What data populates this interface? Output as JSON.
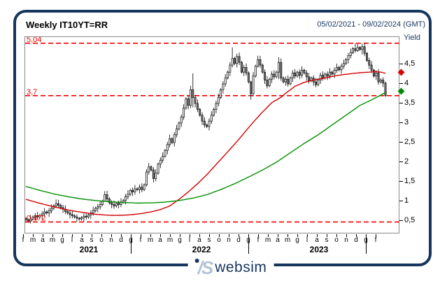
{
  "header": {
    "title": "Weekly IT10YT=RR",
    "date_range": "05/02/2021 - 09/02/2024 (GMT)"
  },
  "footer": {
    "logo_mark": "/S",
    "logo_text": "websim"
  },
  "chart_data": {
    "type": "candlestick",
    "title": "Weekly IT10YT=RR",
    "period": "05/02/2021 - 09/02/2024 (GMT)",
    "ylabel": "Yield",
    "ylim": [
      0.16,
      5.2
    ],
    "grid": false,
    "y_ticks": [
      {
        "value": 4.5,
        "label": "4,5"
      },
      {
        "value": 4.0,
        "label": "4"
      },
      {
        "value": 3.5,
        "label": "3,5"
      },
      {
        "value": 3.0,
        "label": "3"
      },
      {
        "value": 2.5,
        "label": "2,5"
      },
      {
        "value": 2.0,
        "label": "2"
      },
      {
        "value": 1.5,
        "label": "1,5"
      },
      {
        "value": 1.0,
        "label": "1"
      },
      {
        "value": 0.5,
        "label": "0,5"
      }
    ],
    "levels": [
      {
        "value": 5.04,
        "label": "5,04",
        "meaning": "highest high"
      },
      {
        "value": 3.7,
        "label": "3,7",
        "meaning": "last price"
      },
      {
        "value": 0.472,
        "label": "0,472",
        "meaning": "lowest low"
      }
    ],
    "months": [
      "f",
      "m",
      "a",
      "m",
      "g",
      "l",
      "a",
      "s",
      "o",
      "n",
      "d",
      "g",
      "f",
      "m",
      "a",
      "m",
      "g",
      "l",
      "a",
      "s",
      "o",
      "n",
      "d",
      "g",
      "f",
      "m",
      "a",
      "m",
      "g",
      "l",
      "a",
      "s",
      "o",
      "n",
      "d",
      "g",
      "f"
    ],
    "year_dividers": [
      11,
      23,
      35
    ],
    "years": [
      {
        "label": "2021",
        "from": 0,
        "to": 10
      },
      {
        "label": "2022",
        "from": 11,
        "to": 22
      },
      {
        "label": "2023",
        "from": 23,
        "to": 34
      }
    ],
    "candles": {
      "first_open": 0.56,
      "closes": [
        0.53,
        0.5,
        0.55,
        0.6,
        0.63,
        0.6,
        0.64,
        0.68,
        0.73,
        0.7,
        0.76,
        0.82,
        0.88,
        0.94,
        0.9,
        0.84,
        0.8,
        0.74,
        0.7,
        0.66,
        0.63,
        0.6,
        0.57,
        0.55,
        0.58,
        0.62,
        0.6,
        0.65,
        0.7,
        0.76,
        0.82,
        0.86,
        0.92,
        1.0,
        1.17,
        1.06,
        0.96,
        0.92,
        0.88,
        0.95,
        0.92,
        0.98,
        1.02,
        1.12,
        1.18,
        1.28,
        1.24,
        1.32,
        1.3,
        1.36,
        1.3,
        1.42,
        1.75,
        1.88,
        1.8,
        1.58,
        1.72,
        1.95,
        2.05,
        2.15,
        2.3,
        2.45,
        2.6,
        2.5,
        2.7,
        2.85,
        3.0,
        3.15,
        3.38,
        3.62,
        3.45,
        3.85,
        3.65,
        3.5,
        3.35,
        3.2,
        3.05,
        2.95,
        2.91,
        3.05,
        3.2,
        3.35,
        3.5,
        3.65,
        3.85,
        4.0,
        4.15,
        4.3,
        4.48,
        4.65,
        4.52,
        4.7,
        4.55,
        4.3,
        4.42,
        4.28,
        4.05,
        3.75,
        4.2,
        4.45,
        4.62,
        4.48,
        4.3,
        4.1,
        3.95,
        4.12,
        4.25,
        4.18,
        4.3,
        4.55,
        4.15,
        4.05,
        4.12,
        4.0,
        4.15,
        4.28,
        4.2,
        4.3,
        4.22,
        4.35,
        4.28,
        4.18,
        4.08,
        4.15,
        4.05,
        3.98,
        4.1,
        4.22,
        4.15,
        4.25,
        4.2,
        4.3,
        4.25,
        4.35,
        4.42,
        4.36,
        4.45,
        4.52,
        4.62,
        4.72,
        4.8,
        4.9,
        4.85,
        4.93,
        4.88,
        4.95,
        4.78,
        4.6,
        4.48,
        4.35,
        4.2,
        4.28,
        4.05,
        4.1,
        4.02,
        3.7
      ],
      "wick_overrides": {
        "1": [
          0.56,
          0.472
        ],
        "13": [
          1.05,
          0.85
        ],
        "23": [
          0.6,
          0.505
        ],
        "34": [
          1.26,
          1.0
        ],
        "52": [
          1.82,
          1.38
        ],
        "72": [
          4.27,
          3.4
        ],
        "89": [
          4.93,
          4.42
        ],
        "97": [
          4.08,
          3.6
        ],
        "100": [
          4.72,
          4.42
        ],
        "109": [
          4.68,
          4.12
        ],
        "142": [
          5.04,
          4.8
        ],
        "143": [
          5.02,
          4.82
        ],
        "145": [
          5.03,
          4.75
        ],
        "155": [
          4.06,
          3.67
        ]
      }
    },
    "ma_red": [
      [
        0,
        1.05
      ],
      [
        6,
        0.95
      ],
      [
        12,
        0.86
      ],
      [
        18,
        0.78
      ],
      [
        24,
        0.72
      ],
      [
        30,
        0.67
      ],
      [
        34,
        0.65
      ],
      [
        38,
        0.64
      ],
      [
        42,
        0.645
      ],
      [
        46,
        0.66
      ],
      [
        50,
        0.69
      ],
      [
        54,
        0.73
      ],
      [
        58,
        0.79
      ],
      [
        62,
        0.88
      ],
      [
        66,
        1.05
      ],
      [
        70,
        1.24
      ],
      [
        74,
        1.45
      ],
      [
        78,
        1.68
      ],
      [
        82,
        1.94
      ],
      [
        86,
        2.2
      ],
      [
        90,
        2.46
      ],
      [
        94,
        2.74
      ],
      [
        98,
        3.02
      ],
      [
        102,
        3.28
      ],
      [
        106,
        3.52
      ],
      [
        110,
        3.66
      ],
      [
        112,
        3.76
      ],
      [
        116,
        3.94
      ],
      [
        120,
        4.04
      ],
      [
        124,
        4.1
      ],
      [
        128,
        4.14
      ],
      [
        132,
        4.19
      ],
      [
        136,
        4.23
      ],
      [
        140,
        4.26
      ],
      [
        144,
        4.285
      ],
      [
        148,
        4.3
      ],
      [
        151,
        4.315
      ],
      [
        153,
        4.3
      ],
      [
        155,
        4.27
      ]
    ],
    "ma_green": [
      [
        0,
        1.38
      ],
      [
        6,
        1.28
      ],
      [
        12,
        1.19
      ],
      [
        18,
        1.12
      ],
      [
        24,
        1.06
      ],
      [
        30,
        1.02
      ],
      [
        36,
        0.99
      ],
      [
        42,
        0.97
      ],
      [
        48,
        0.955
      ],
      [
        54,
        0.96
      ],
      [
        60,
        0.98
      ],
      [
        66,
        1.02
      ],
      [
        72,
        1.08
      ],
      [
        78,
        1.17
      ],
      [
        84,
        1.3
      ],
      [
        90,
        1.45
      ],
      [
        96,
        1.62
      ],
      [
        102,
        1.8
      ],
      [
        108,
        2.0
      ],
      [
        114,
        2.24
      ],
      [
        120,
        2.48
      ],
      [
        126,
        2.7
      ],
      [
        132,
        2.95
      ],
      [
        138,
        3.2
      ],
      [
        144,
        3.45
      ],
      [
        150,
        3.62
      ],
      [
        155,
        3.78
      ]
    ],
    "markers": [
      {
        "name": "red-ma-last-value",
        "value": 4.27,
        "color": "#dd0000"
      },
      {
        "name": "green-ma-last-value",
        "value": 3.79,
        "color": "#008b00"
      }
    ],
    "colors": {
      "level": "#f20000",
      "ma_red": "#d40000",
      "ma_green": "#009100",
      "candle_up": "#ffffff",
      "candle_down": "#7d7d7d",
      "candle_stroke": "#000000",
      "frame": "#17365d"
    }
  }
}
